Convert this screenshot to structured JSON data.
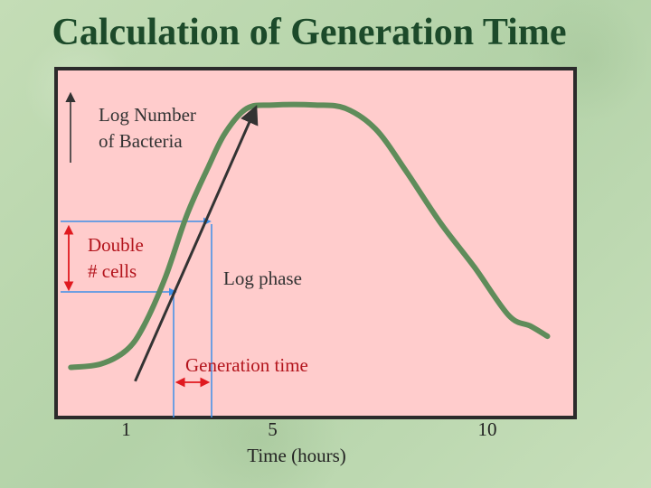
{
  "title": "Calculation of Generation Time",
  "colors": {
    "plot_background": "#ffcccc",
    "curve": "#5f8c5a",
    "arrow": "#333333",
    "marker_lines": "#3f8fe8",
    "double_arrow": "#e0191f",
    "label_dark": "#333333",
    "label_red": "#b3141c",
    "label_axis": "#222222"
  },
  "chart_data": {
    "type": "line",
    "title": "Calculation of Generation Time",
    "ylabel": "Log Number of Bacteria",
    "ylabel_lines": [
      "Log Number",
      "of Bacteria"
    ],
    "xlabel": "Time (hours)",
    "xlim": [
      0,
      12
    ],
    "ylim": [
      0,
      10
    ],
    "x_ticks": [
      {
        "value": 1,
        "label": "1"
      },
      {
        "value": 5,
        "label": "5"
      },
      {
        "value": 10,
        "label": "10"
      }
    ],
    "grid": false,
    "series": [
      {
        "values_xy": [
          [
            0.3,
            1.4
          ],
          [
            1.0,
            1.5
          ],
          [
            1.6,
            1.9
          ],
          [
            2.0,
            2.6
          ],
          [
            2.5,
            4.0
          ],
          [
            3.0,
            5.8
          ],
          [
            3.5,
            7.2
          ],
          [
            3.9,
            8.2
          ],
          [
            4.4,
            8.9
          ],
          [
            5.0,
            9.0
          ],
          [
            6.0,
            9.0
          ],
          [
            6.7,
            8.9
          ],
          [
            7.4,
            8.3
          ],
          [
            8.1,
            7.1
          ],
          [
            8.9,
            5.6
          ],
          [
            9.7,
            4.3
          ],
          [
            10.5,
            2.9
          ],
          [
            11.0,
            2.6
          ],
          [
            11.4,
            2.3
          ]
        ]
      }
    ],
    "log_phase_arrow": {
      "from": [
        1.8,
        1.0
      ],
      "to": [
        4.6,
        8.9
      ]
    },
    "generation_interval": {
      "x_start": 2.3,
      "x_end": 3.1,
      "y_low": 4.0,
      "y_high": 6.2
    },
    "annotations": {
      "double_cells": [
        "Double",
        "# cells"
      ],
      "log_phase": "Log phase",
      "generation_time": "Generation time"
    }
  }
}
